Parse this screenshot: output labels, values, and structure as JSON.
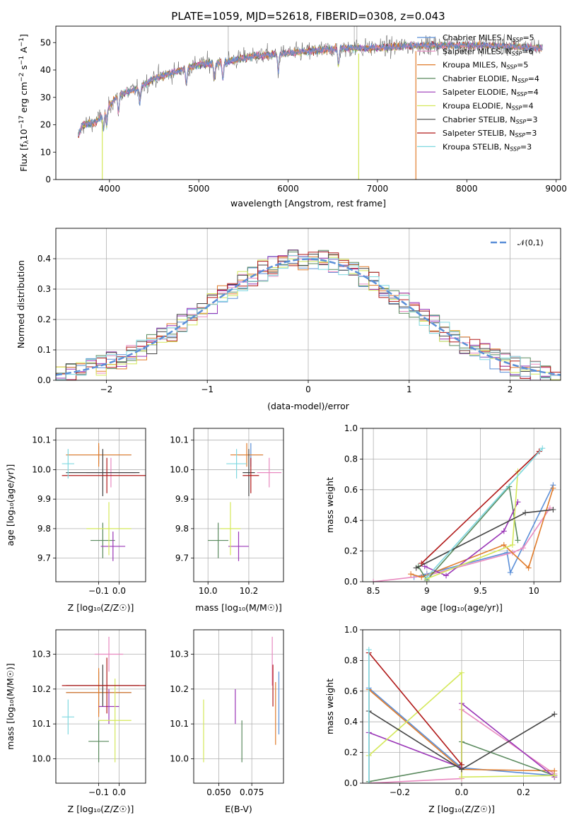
{
  "title": "PLATE=1059, MJD=52618, FIBERID=0308, z=0.043",
  "colors": {
    "Chabrier MILES": "#5b8fd8",
    "Salpeter MILES": "#e889c0",
    "Kroupa MILES": "#e07b2a",
    "Chabrier ELODIE": "#5a8a5e",
    "Salpeter ELODIE": "#9a36b7",
    "Kroupa ELODIE": "#d4e85a",
    "Chabrier STELIB": "#444444",
    "Salpeter STELIB": "#b01818",
    "Kroupa STELIB": "#7fd8e0"
  },
  "chart_data": [
    {
      "id": "spectrum",
      "type": "line",
      "title": "PLATE=1059, MJD=52618, FIBERID=0308, z=0.043",
      "xlabel": "wavelength [Angstrom, rest frame]",
      "ylabel": "Flux [f_λ 10^-17 erg cm^-2 s^-1 A^-1]",
      "xlim": [
        3400,
        9050
      ],
      "ylim": [
        0,
        56
      ],
      "xticks": [
        4000,
        5000,
        6000,
        7000,
        8000,
        9000
      ],
      "yticks": [
        0,
        10,
        20,
        30,
        40,
        50
      ],
      "grid": false,
      "legend_position": "right",
      "spectrum_range": [
        3650,
        8850
      ],
      "continuum_x": [
        3650,
        3700,
        3850,
        4000,
        4100,
        4300,
        4500,
        4800,
        5000,
        5300,
        5600,
        6000,
        6300,
        6600,
        6900,
        7200,
        7500,
        7800,
        8200,
        8600,
        8850
      ],
      "continuum_y": [
        16,
        20,
        21,
        27,
        31,
        33,
        37,
        40,
        42,
        43,
        45,
        46,
        47,
        48,
        48,
        48.5,
        49,
        49,
        49,
        48.5,
        48
      ],
      "model_cutoffs": [
        {
          "series": "Kroupa MILES",
          "x": 7430
        },
        {
          "series": "Kroupa ELODIE",
          "x": 6790
        },
        {
          "series": "Kroupa ELODIE",
          "x": 3920
        }
      ],
      "legend": [
        {
          "name": "Chabrier MILES",
          "nssp": "5"
        },
        {
          "name": "Salpeter MILES",
          "nssp": "6"
        },
        {
          "name": "Kroupa MILES",
          "nssp": "5"
        },
        {
          "name": "Chabrier ELODIE",
          "nssp": "4"
        },
        {
          "name": "Salpeter ELODIE",
          "nssp": "4"
        },
        {
          "name": "Kroupa ELODIE",
          "nssp": "4"
        },
        {
          "name": "Chabrier STELIB",
          "nssp": "3"
        },
        {
          "name": "Salpeter STELIB",
          "nssp": "3"
        },
        {
          "name": "Kroupa STELIB",
          "nssp": "3"
        }
      ]
    },
    {
      "id": "residuals",
      "type": "histogram",
      "xlabel": "(data-model)/error",
      "ylabel": "Normed distribution",
      "xlim": [
        -2.5,
        2.5
      ],
      "ylim": [
        0,
        0.5
      ],
      "xticks": [
        -2,
        -1,
        0,
        1,
        2
      ],
      "yticks": [
        0.0,
        0.1,
        0.2,
        0.3,
        0.4
      ],
      "grid": true,
      "bin_width": 0.1,
      "legend": "𝒩(0,1)",
      "legend_position": "top-right",
      "gaussian": {
        "mean": 0,
        "sigma": 1
      }
    },
    {
      "id": "age_vs_Z",
      "type": "errorbar",
      "xlabel": "Z [log₁₀(Z/Z☉)]",
      "ylabel": "age  [log₁₀(age/yr)]",
      "xlim": [
        -0.31,
        0.13
      ],
      "ylim": [
        9.62,
        10.14
      ],
      "xticks": [
        -0.1,
        0.0
      ],
      "xticklabels": [
        "−0.1",
        "0.0"
      ],
      "yticks": [
        9.7,
        9.8,
        9.9,
        10.0,
        10.1
      ],
      "grid": true,
      "points": [
        {
          "series": "Chabrier MILES",
          "x": -0.1,
          "xerr": 0.16,
          "y": 10.05,
          "yerr": 0.03
        },
        {
          "series": "Salpeter MILES",
          "x": -0.04,
          "xerr": 0.12,
          "y": 9.99,
          "yerr": 0.05
        },
        {
          "series": "Kroupa MILES",
          "x": -0.1,
          "xerr": 0.16,
          "y": 10.05,
          "yerr": 0.04
        },
        {
          "series": "Chabrier ELODIE",
          "x": -0.08,
          "xerr": 0.06,
          "y": 9.76,
          "yerr": 0.06
        },
        {
          "series": "Salpeter ELODIE",
          "x": -0.03,
          "xerr": 0.06,
          "y": 9.74,
          "yerr": 0.05
        },
        {
          "series": "Kroupa ELODIE",
          "x": -0.05,
          "xerr": 0.11,
          "y": 9.8,
          "yerr": 0.09
        },
        {
          "series": "Chabrier STELIB",
          "x": -0.08,
          "xerr": 0.18,
          "y": 9.99,
          "yerr": 0.08
        },
        {
          "series": "Salpeter STELIB",
          "x": -0.06,
          "xerr": 0.22,
          "y": 9.98,
          "yerr": 0.06
        },
        {
          "series": "Kroupa STELIB",
          "x": -0.25,
          "xerr": 0.03,
          "y": 10.02,
          "yerr": 0.05
        }
      ]
    },
    {
      "id": "age_vs_mass",
      "type": "errorbar",
      "xlabel": "mass [log₁₀(M/M☉)]",
      "ylabel": "",
      "xlim": [
        9.93,
        10.37
      ],
      "ylim": [
        9.62,
        10.14
      ],
      "xticks": [
        10.0,
        10.2
      ],
      "xticklabels": [
        "10.0",
        "10.2"
      ],
      "yticks": [
        9.7,
        9.8,
        9.9,
        10.0,
        10.1
      ],
      "grid": true,
      "points": [
        {
          "series": "Chabrier MILES",
          "x": 10.21,
          "xerr": 0.06,
          "y": 10.05,
          "yerr": 0.04
        },
        {
          "series": "Salpeter MILES",
          "x": 10.3,
          "xerr": 0.06,
          "y": 9.99,
          "yerr": 0.05
        },
        {
          "series": "Kroupa MILES",
          "x": 10.19,
          "xerr": 0.08,
          "y": 10.05,
          "yerr": 0.04
        },
        {
          "series": "Chabrier ELODIE",
          "x": 10.05,
          "xerr": 0.05,
          "y": 9.76,
          "yerr": 0.06
        },
        {
          "series": "Salpeter ELODIE",
          "x": 10.15,
          "xerr": 0.05,
          "y": 9.74,
          "yerr": 0.05
        },
        {
          "series": "Kroupa ELODIE",
          "x": 10.11,
          "xerr": 0.05,
          "y": 9.8,
          "yerr": 0.09
        },
        {
          "series": "Chabrier STELIB",
          "x": 10.2,
          "xerr": 0.03,
          "y": 9.99,
          "yerr": 0.08
        },
        {
          "series": "Salpeter STELIB",
          "x": 10.21,
          "xerr": 0.04,
          "y": 9.98,
          "yerr": 0.06
        },
        {
          "series": "Kroupa STELIB",
          "x": 10.14,
          "xerr": 0.05,
          "y": 10.02,
          "yerr": 0.05
        }
      ]
    },
    {
      "id": "weight_vs_age",
      "type": "line",
      "xlabel": "age  [log₁₀(age/yr)]",
      "ylabel": "mass weight",
      "xlim": [
        8.4,
        10.25
      ],
      "ylim": [
        0,
        1.0
      ],
      "xticks": [
        8.5,
        9.0,
        9.5,
        10.0
      ],
      "yticks": [
        0.0,
        0.2,
        0.4,
        0.6,
        0.8,
        1.0
      ],
      "grid": true,
      "series": [
        {
          "name": "Chabrier MILES",
          "x": [
            8.88,
            9.0,
            9.75,
            9.78,
            10.18
          ],
          "y": [
            0.03,
            0.05,
            0.19,
            0.06,
            0.63
          ]
        },
        {
          "name": "Salpeter MILES",
          "x": [
            8.5,
            9.0,
            9.8,
            9.9,
            10.15
          ],
          "y": [
            0.0,
            0.04,
            0.19,
            0.22,
            0.48
          ]
        },
        {
          "name": "Kroupa MILES",
          "x": [
            8.85,
            8.95,
            9.72,
            9.95,
            10.18
          ],
          "y": [
            0.05,
            0.03,
            0.24,
            0.09,
            0.61
          ]
        },
        {
          "name": "Chabrier ELODIE",
          "x": [
            8.92,
            9.0,
            9.77,
            9.85
          ],
          "y": [
            0.1,
            0.01,
            0.62,
            0.27
          ]
        },
        {
          "name": "Salpeter ELODIE",
          "x": [
            8.98,
            9.18,
            9.72,
            9.85
          ],
          "y": [
            0.1,
            0.04,
            0.33,
            0.52
          ]
        },
        {
          "name": "Kroupa ELODIE",
          "x": [
            9.0,
            9.8,
            9.85
          ],
          "y": [
            0.02,
            0.24,
            0.72
          ]
        },
        {
          "name": "Chabrier STELIB",
          "x": [
            8.9,
            9.92,
            10.18
          ],
          "y": [
            0.09,
            0.45,
            0.47
          ]
        },
        {
          "name": "Salpeter STELIB",
          "x": [
            8.95,
            10.05
          ],
          "y": [
            0.12,
            0.85
          ]
        },
        {
          "name": "Kroupa STELIB",
          "x": [
            9.0,
            10.08
          ],
          "y": [
            0.03,
            0.87
          ]
        }
      ]
    },
    {
      "id": "mass_vs_Z",
      "type": "errorbar",
      "xlabel": "Z [log₁₀(Z/Z☉)]",
      "ylabel": "mass [log₁₀(M/M☉)]",
      "xlim": [
        -0.31,
        0.13
      ],
      "ylim": [
        9.93,
        10.37
      ],
      "xticks": [
        -0.1,
        0.0
      ],
      "xticklabels": [
        "−0.1",
        "0.0"
      ],
      "yticks": [
        10.0,
        10.1,
        10.2,
        10.3
      ],
      "grid": true,
      "points": [
        {
          "series": "Chabrier MILES",
          "x": -0.1,
          "xerr": 0.16,
          "y": 10.19,
          "yerr": 0.06
        },
        {
          "series": "Salpeter MILES",
          "x": -0.05,
          "xerr": 0.07,
          "y": 10.3,
          "yerr": 0.05
        },
        {
          "series": "Kroupa MILES",
          "x": -0.1,
          "xerr": 0.16,
          "y": 10.19,
          "yerr": 0.07
        },
        {
          "series": "Chabrier ELODIE",
          "x": -0.1,
          "xerr": 0.05,
          "y": 10.05,
          "yerr": 0.06
        },
        {
          "series": "Salpeter ELODIE",
          "x": -0.05,
          "xerr": 0.05,
          "y": 10.15,
          "yerr": 0.05
        },
        {
          "series": "Kroupa ELODIE",
          "x": -0.02,
          "xerr": 0.08,
          "y": 10.11,
          "yerr": 0.12
        },
        {
          "series": "Chabrier STELIB",
          "x": -0.08,
          "xerr": 0.18,
          "y": 10.21,
          "yerr": 0.06
        },
        {
          "series": "Salpeter STELIB",
          "x": -0.06,
          "xerr": 0.22,
          "y": 10.21,
          "yerr": 0.08
        },
        {
          "series": "Kroupa STELIB",
          "x": -0.25,
          "xerr": 0.03,
          "y": 10.12,
          "yerr": 0.05
        }
      ]
    },
    {
      "id": "mass_vs_EBV",
      "type": "errorbar",
      "xlabel": "E(B-V)",
      "ylabel": "",
      "xlim": [
        0.031,
        0.099
      ],
      "ylim": [
        9.93,
        10.37
      ],
      "xticks": [
        0.05,
        0.075
      ],
      "xticklabels": [
        "0.050",
        "0.075"
      ],
      "yticks": [
        10.0,
        10.1,
        10.2,
        10.3
      ],
      "grid": true,
      "points": [
        {
          "series": "Chabrier MILES",
          "x": 0.0955,
          "xerr": 0,
          "y": 10.16,
          "yerr": 0.09
        },
        {
          "series": "Salpeter MILES",
          "x": 0.0905,
          "xerr": 0,
          "y": 10.28,
          "yerr": 0.07
        },
        {
          "series": "Kroupa MILES",
          "x": 0.093,
          "xerr": 0,
          "y": 10.13,
          "yerr": 0.09
        },
        {
          "series": "Chabrier ELODIE",
          "x": 0.0675,
          "xerr": 0,
          "y": 10.05,
          "yerr": 0.06
        },
        {
          "series": "Salpeter ELODIE",
          "x": 0.0625,
          "xerr": 0,
          "y": 10.15,
          "yerr": 0.05
        },
        {
          "series": "Kroupa ELODIE",
          "x": 0.0385,
          "xerr": 0,
          "y": 10.08,
          "yerr": 0.09
        },
        {
          "series": "Salpeter STELIB",
          "x": 0.091,
          "xerr": 0,
          "y": 10.21,
          "yerr": 0.06
        }
      ]
    },
    {
      "id": "weight_vs_Z",
      "type": "line",
      "xlabel": "Z [log₁₀(Z/Z☉)]",
      "ylabel": "mass weight",
      "xlim": [
        -0.32,
        0.32
      ],
      "ylim": [
        0,
        1.0
      ],
      "xticks": [
        -0.2,
        0.0,
        0.2
      ],
      "xticklabels": [
        "−0.2",
        "0.0",
        "0.2"
      ],
      "yticks": [
        0.0,
        0.2,
        0.4,
        0.6,
        0.8,
        1.0
      ],
      "grid": true,
      "series": [
        {
          "name": "Chabrier MILES",
          "x": [
            -0.3,
            -0.3,
            0.0,
            0.3
          ],
          "y": [
            0.0,
            0.62,
            0.1,
            0.05
          ]
        },
        {
          "name": "Salpeter MILES",
          "x": [
            -0.3,
            0.0,
            0.0,
            0.3
          ],
          "y": [
            0.0,
            0.03,
            0.48,
            0.06
          ]
        },
        {
          "name": "Kroupa MILES",
          "x": [
            -0.3,
            -0.3,
            0.0,
            0.3
          ],
          "y": [
            0.0,
            0.61,
            0.09,
            0.08
          ]
        },
        {
          "name": "Chabrier ELODIE",
          "x": [
            -0.3,
            0.0,
            0.0,
            0.3
          ],
          "y": [
            0.01,
            0.12,
            0.27,
            0.05
          ]
        },
        {
          "name": "Salpeter ELODIE",
          "x": [
            -0.3,
            0.0,
            0.0,
            0.3
          ],
          "y": [
            0.33,
            0.1,
            0.52,
            0.04
          ]
        },
        {
          "name": "Kroupa ELODIE",
          "x": [
            -0.3,
            0.0,
            0.0,
            0.3
          ],
          "y": [
            0.18,
            0.72,
            0.04,
            0.05
          ]
        },
        {
          "name": "Chabrier STELIB",
          "x": [
            -0.3,
            0.0,
            0.3
          ],
          "y": [
            0.47,
            0.09,
            0.45
          ]
        },
        {
          "name": "Salpeter STELIB",
          "x": [
            -0.3,
            -0.3,
            0.0
          ],
          "y": [
            0.0,
            0.85,
            0.12
          ]
        },
        {
          "name": "Kroupa STELIB",
          "x": [
            -0.3,
            -0.3
          ],
          "y": [
            0.0,
            0.87
          ]
        }
      ]
    }
  ]
}
